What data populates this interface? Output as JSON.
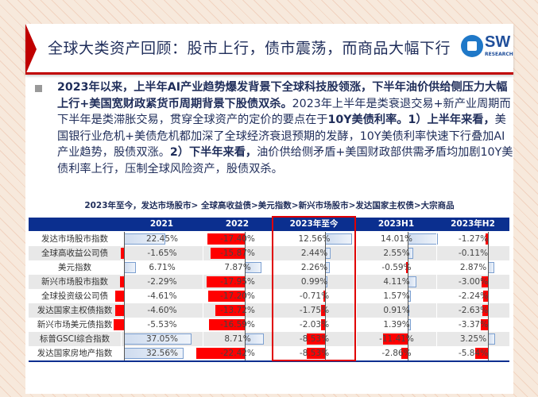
{
  "title": "全球大类资产回顾：股市上行，债市震荡，而商品大幅下行",
  "logo": {
    "text": "SW",
    "sub": "RESEARCH"
  },
  "paragraph": {
    "b1": "2023年以来，上半年AI产业趋势爆发背景下全球科技股领涨，下半年油价供给侧压力大幅上行+美国宽财政紧货币周期背景下股债双杀。",
    "t1": "2023年上半年是类衰退交易+新产业周期而下半年是类滞胀交易，贯穿全球资产的定价的要点在于",
    "b2": "10Y美债利率。1）上半年来看，",
    "t2": "美国银行业危机+美债危机都加深了全球经济衰退预期的发酵，10Y美债利率快速下行叠加AI产业趋势，股债双涨。",
    "b3": "2）下半年来看，",
    "t3": "油价供给侧矛盾+美国财政部供需矛盾均加剧10Y美债利率上行，压制全球风险资产，股债双杀。"
  },
  "caption": "2023年至今，发达市场股市> 全球高收益债>美元指数>新兴市场股市>发达国家主权债>大宗商品",
  "table": {
    "headers": [
      "",
      "2021",
      "2022",
      "2023年至今",
      "2023H1",
      "2023年H2"
    ],
    "highlight_column": "2023年至今",
    "colors": {
      "positive": "#cfdcef",
      "negative": "#ff0000",
      "header": "#0b2f8f"
    },
    "rows": [
      {
        "label": "发达市场股市指数",
        "values": [
          "22.45%",
          "-17.40%",
          "12.56%",
          "14.01%",
          "-1.27%"
        ]
      },
      {
        "label": "全球高收益公司债",
        "values": [
          "-1.65%",
          "-15.87%",
          "2.44%",
          "2.55%",
          "-0.11%"
        ]
      },
      {
        "label": "美元指数",
        "values": [
          "6.71%",
          "7.87%",
          "2.26%",
          "-0.59%",
          "2.87%"
        ]
      },
      {
        "label": "新兴市场股市指数",
        "values": [
          "-2.29%",
          "-17.95%",
          "0.99%",
          "4.11%",
          "-3.00%"
        ]
      },
      {
        "label": "全球投资级公司债",
        "values": [
          "-4.61%",
          "-17.20%",
          "-0.71%",
          "1.57%",
          "-2.24%"
        ]
      },
      {
        "label": "发达国家主权债指数",
        "values": [
          "-4.60%",
          "-13.72%",
          "-1.75%",
          "0.91%",
          "-2.63%"
        ]
      },
      {
        "label": "新兴市场美元债指数",
        "values": [
          "-5.53%",
          "-16.59%",
          "-2.03%",
          "1.39%",
          "-3.37%"
        ]
      },
      {
        "label": "标普GSCI综合指数",
        "values": [
          "37.05%",
          "8.71%",
          "-8.53%",
          "-11.41%",
          "3.25%"
        ]
      },
      {
        "label": "发达国家房地产指数",
        "values": [
          "32.56%",
          "-22.42%",
          "-8.53%",
          "-2.86%",
          "-5.84%"
        ]
      }
    ]
  }
}
